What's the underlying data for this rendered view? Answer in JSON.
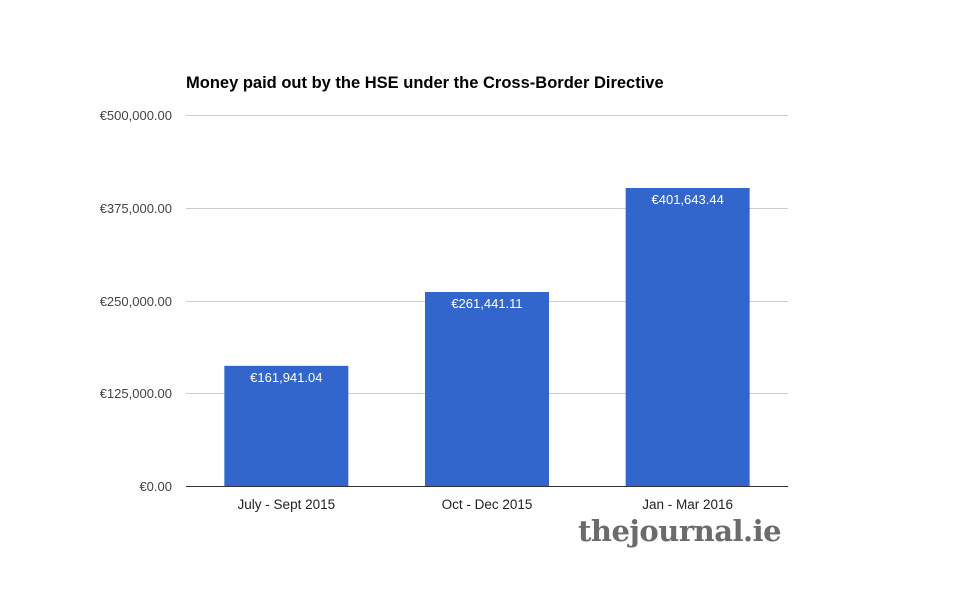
{
  "chart_data": {
    "type": "bar",
    "title": "Money paid out by the HSE under the Cross-Border Directive",
    "categories": [
      "July - Sept 2015",
      "Oct - Dec 2015",
      "Jan - Mar 2016"
    ],
    "values": [
      161941.04,
      261441.11,
      401643.44
    ],
    "data_labels": [
      "€161,941.04",
      "€261,441.11",
      "€401,643.44"
    ],
    "yticks": [
      0,
      125000,
      250000,
      375000,
      500000
    ],
    "ytick_labels": [
      "€0.00",
      "€125,000.00",
      "€250,000.00",
      "€375,000.00",
      "€500,000.00"
    ],
    "ylim": [
      0,
      500000
    ],
    "xlabel": "",
    "ylabel": "",
    "grid": true,
    "legend": "none",
    "bar_color": "#3366cc"
  },
  "watermark": {
    "text": "thejournal.ie",
    "color": "#6b6b6b"
  }
}
